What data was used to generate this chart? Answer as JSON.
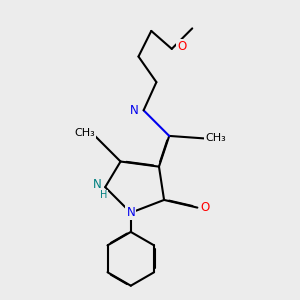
{
  "background_color": "#ececec",
  "atom_colors": {
    "N": "#0000ee",
    "O": "#ff0000",
    "C": "#000000",
    "H": "#008080"
  },
  "bond_color": "#000000",
  "bond_width": 1.5,
  "dbo": 0.018,
  "figsize": [
    3.0,
    3.0
  ],
  "dpi": 100
}
